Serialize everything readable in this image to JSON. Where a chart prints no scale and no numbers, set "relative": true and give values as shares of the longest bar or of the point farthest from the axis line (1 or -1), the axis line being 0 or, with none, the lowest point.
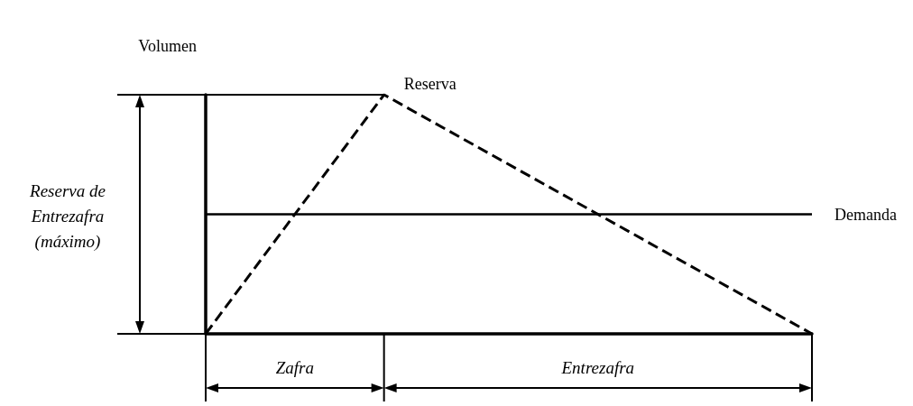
{
  "chart_data": {
    "type": "line",
    "relative": true,
    "ylabel": "Volumen",
    "grid": false,
    "legend": false,
    "marker": "none",
    "categories": [
      null,
      null,
      null,
      null,
      null,
      null,
      null,
      null,
      null,
      null,
      null,
      null,
      null,
      null,
      null,
      null,
      null,
      null
    ],
    "series": [
      {
        "name": "Reserva",
        "color": "#000000",
        "line_style": "dashed",
        "values": [
          0,
          null,
          null,
          null,
          null,
          1,
          null,
          null,
          null,
          null,
          null,
          null,
          null,
          null,
          null,
          null,
          null,
          0
        ]
      },
      {
        "name": "Demanda",
        "color": "#000000",
        "line_style": "solid",
        "values": [
          0.5,
          null,
          null,
          null,
          null,
          null,
          null,
          null,
          null,
          null,
          null,
          null,
          null,
          null,
          null,
          null,
          null,
          0.5
        ]
      }
    ],
    "annotations": [
      "Reserva de Entrezafra (máximo)",
      "Zafra",
      "Entrezafra"
    ]
  }
}
